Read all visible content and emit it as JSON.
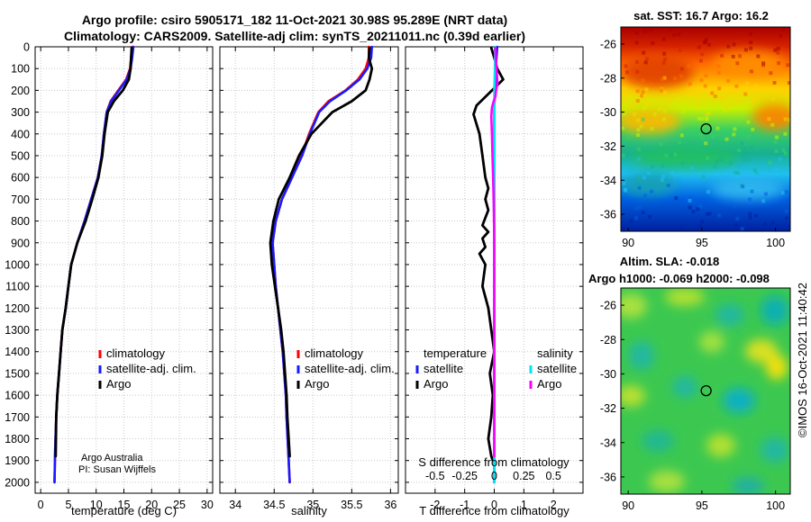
{
  "title_line1": "Argo profile: csiro 5905171_182 11-Oct-2021 30.98S 95.289E (NRT data)",
  "title_line2": "Climatology: CARS2009. Satellite-adj clim: synTS_20211011.nc (0.39d earlier)",
  "credit": {
    "line1": "Argo Australia",
    "line2": "PI: Susan Wijffels"
  },
  "stamp": "©IMOS 16-Oct-2021 11:40:42",
  "colors": {
    "climatology": "#ff0000",
    "satellite_adj": "#1a1aff",
    "argo": "#000000",
    "sat_cyan": "#00e5ee",
    "argo_magenta": "#ff00ff",
    "grid": "#c8c8c8"
  },
  "chart_data": [
    {
      "type": "line",
      "id": "temperature",
      "xlabel": "temperature (deg C)",
      "ylabel": "",
      "xlim": [
        -1,
        31
      ],
      "ylim": [
        2050,
        0
      ],
      "xticks": [
        0,
        5,
        10,
        15,
        20,
        25,
        30
      ],
      "xtick_labels": [
        "0",
        "5",
        "10",
        "15",
        "20",
        "25",
        "30"
      ],
      "yticks": [
        0,
        100,
        200,
        300,
        400,
        500,
        600,
        700,
        800,
        900,
        1000,
        1100,
        1200,
        1300,
        1400,
        1500,
        1600,
        1700,
        1800,
        1900,
        2000
      ],
      "ytick_labels": [
        "0",
        "100",
        "200",
        "300",
        "400",
        "500",
        "600",
        "700",
        "800",
        "900",
        "1000",
        "1100",
        "1200",
        "1300",
        "1400",
        "1500",
        "1600",
        "1700",
        "1800",
        "1900",
        "2000"
      ],
      "grid": true,
      "legend": [
        "climatology",
        "satellite-adj. clim.",
        "Argo"
      ],
      "legend_position": "bottom-right",
      "series": [
        {
          "name": "climatology",
          "color": "#ff0000",
          "x": [
            16.5,
            16.3,
            16.1,
            15.4,
            14.0,
            12.6,
            11.9,
            11.4,
            11.0,
            10.3,
            9.1,
            7.9,
            6.6,
            5.5,
            5.0,
            4.5,
            3.9,
            3.6,
            3.3,
            3.0,
            2.8,
            2.6,
            2.5
          ],
          "y": [
            0,
            50,
            100,
            150,
            200,
            250,
            300,
            400,
            500,
            600,
            700,
            800,
            900,
            1000,
            1100,
            1200,
            1300,
            1400,
            1500,
            1600,
            1700,
            1850,
            2000
          ]
        },
        {
          "name": "satellite-adj. clim.",
          "color": "#1a1aff",
          "x": [
            16.7,
            16.5,
            16.2,
            15.5,
            14.1,
            12.7,
            11.9,
            11.4,
            11.0,
            10.3,
            9.1,
            7.9,
            6.6,
            5.5,
            5.0,
            4.5,
            3.9,
            3.6,
            3.3,
            3.0,
            2.8,
            2.6,
            2.5
          ],
          "y": [
            0,
            50,
            100,
            150,
            200,
            250,
            300,
            400,
            500,
            600,
            700,
            800,
            900,
            1000,
            1100,
            1200,
            1300,
            1400,
            1500,
            1600,
            1700,
            1850,
            2000
          ]
        },
        {
          "name": "Argo",
          "color": "#000000",
          "x": [
            16.4,
            16.3,
            16.2,
            15.9,
            14.8,
            13.2,
            12.1,
            11.5,
            11.1,
            10.4,
            9.3,
            8.1,
            6.6,
            5.5,
            5.0,
            4.5,
            3.9,
            3.6,
            3.3,
            3.0,
            2.8,
            2.7
          ],
          "y": [
            5,
            50,
            100,
            150,
            200,
            250,
            300,
            400,
            500,
            600,
            700,
            800,
            900,
            1000,
            1100,
            1200,
            1300,
            1400,
            1500,
            1600,
            1700,
            1880
          ]
        }
      ]
    },
    {
      "type": "line",
      "id": "salinity",
      "xlabel": "salinity",
      "ylabel": "",
      "xlim": [
        33.8,
        36.1
      ],
      "ylim": [
        2050,
        0
      ],
      "xticks": [
        34,
        34.5,
        35,
        35.5,
        36
      ],
      "xtick_labels": [
        "34",
        "34.5",
        "35",
        "35.5",
        "36"
      ],
      "grid": true,
      "legend": [
        "climatology",
        "satellite-adj. clim.",
        "Argo"
      ],
      "legend_position": "bottom-right",
      "series": [
        {
          "name": "climatology",
          "color": "#ff0000",
          "x": [
            35.72,
            35.72,
            35.68,
            35.58,
            35.42,
            35.2,
            35.07,
            34.95,
            34.85,
            34.73,
            34.6,
            34.52,
            34.48,
            34.5,
            34.52,
            34.55,
            34.58,
            34.61,
            34.63,
            34.65,
            34.66,
            34.68,
            34.7
          ],
          "y": [
            0,
            50,
            100,
            150,
            200,
            250,
            300,
            400,
            500,
            600,
            700,
            800,
            900,
            1000,
            1100,
            1200,
            1300,
            1400,
            1500,
            1600,
            1700,
            1850,
            2000
          ]
        },
        {
          "name": "satellite-adj. clim.",
          "color": "#1a1aff",
          "x": [
            35.76,
            35.75,
            35.7,
            35.6,
            35.43,
            35.22,
            35.08,
            34.96,
            34.86,
            34.73,
            34.6,
            34.52,
            34.48,
            34.5,
            34.52,
            34.55,
            34.58,
            34.61,
            34.63,
            34.65,
            34.66,
            34.68,
            34.7
          ],
          "y": [
            0,
            50,
            100,
            150,
            200,
            250,
            300,
            400,
            500,
            600,
            700,
            800,
            900,
            1000,
            1100,
            1200,
            1300,
            1400,
            1500,
            1600,
            1700,
            1850,
            2000
          ]
        },
        {
          "name": "Argo",
          "color": "#000000",
          "x": [
            35.73,
            35.72,
            35.76,
            35.73,
            35.68,
            35.5,
            35.25,
            34.98,
            34.82,
            34.7,
            34.56,
            34.49,
            34.45,
            34.47,
            34.51,
            34.55,
            34.59,
            34.62,
            34.64,
            34.66,
            34.67,
            34.7
          ],
          "y": [
            5,
            50,
            100,
            150,
            200,
            250,
            300,
            400,
            500,
            600,
            700,
            800,
            900,
            1000,
            1100,
            1200,
            1300,
            1400,
            1500,
            1600,
            1700,
            1880
          ]
        }
      ]
    },
    {
      "type": "line",
      "id": "difference",
      "xlabel": "T difference from climatology",
      "xlabel_top": "S difference from climatology",
      "xlim": [
        -3,
        3
      ],
      "ylim": [
        2050,
        0
      ],
      "xticks": [
        -2,
        -1,
        0,
        1,
        2
      ],
      "xtick_labels": [
        "-2",
        "-1",
        "0",
        "1",
        "2"
      ],
      "xticks_top": [
        -0.5,
        -0.25,
        0,
        0.25,
        0.5
      ],
      "xtick_labels_top": [
        "-0.5",
        "-0.25",
        "0",
        "0.25",
        "0.5"
      ],
      "grid": true,
      "legend_temperature": {
        "title": "temperature",
        "items": [
          "satellite",
          "Argo"
        ]
      },
      "legend_salinity": {
        "title": "salinity",
        "items": [
          "satellite",
          "Argo"
        ]
      },
      "series": [
        {
          "name": "T satellite",
          "color": "#1a1aff",
          "x": [
            0.1,
            0.05,
            0.02,
            0.0,
            0.0,
            0.0,
            0.0,
            0.0,
            0.0,
            0.0
          ],
          "y": [
            0,
            100,
            200,
            300,
            500,
            800,
            1100,
            1400,
            1700,
            2000
          ]
        },
        {
          "name": "T Argo",
          "color": "#000000",
          "x": [
            -0.1,
            0.0,
            0.1,
            0.3,
            -0.6,
            -0.7,
            -0.5,
            -0.4,
            -0.3,
            -0.2,
            -0.3,
            -0.2,
            -0.4,
            -0.2,
            -0.4,
            -0.3,
            -0.5,
            -0.3,
            -0.4,
            -0.2,
            -0.1,
            0.0,
            -0.15,
            -0.05,
            -0.1,
            -0.2,
            -0.1,
            -0.05
          ],
          "y": [
            5,
            50,
            100,
            150,
            270,
            310,
            400,
            500,
            600,
            650,
            700,
            750,
            820,
            850,
            880,
            920,
            950,
            1000,
            1100,
            1200,
            1300,
            1400,
            1500,
            1600,
            1700,
            1800,
            1880,
            1900
          ]
        },
        {
          "name": "S satellite",
          "color": "#00e5ee",
          "x": [
            0.03,
            0.02,
            0.0,
            0.01,
            0.01,
            0.0,
            0.0,
            0.0,
            0.0,
            0.0
          ],
          "y": [
            0,
            100,
            200,
            300,
            500,
            800,
            1100,
            1400,
            1700,
            2000
          ]
        },
        {
          "name": "S Argo",
          "color": "#ff00ff",
          "x": [
            0.04,
            0.05,
            0.08,
            0.1,
            0.11,
            0.06,
            0.04,
            -0.02,
            -0.08,
            -0.1,
            -0.08,
            -0.06,
            -0.04,
            -0.02,
            -0.01,
            0.0,
            0.0,
            0.0,
            0.0,
            0.0,
            0.0,
            0.0
          ],
          "y": [
            5,
            50,
            100,
            150,
            170,
            200,
            230,
            250,
            280,
            320,
            400,
            500,
            600,
            700,
            800,
            900,
            1000,
            1200,
            1400,
            1600,
            1800,
            1880
          ]
        }
      ]
    },
    {
      "type": "heatmap",
      "id": "sst_map",
      "title": "sat. SST: 16.7 Argo: 16.2",
      "xlim": [
        89.5,
        101
      ],
      "ylim": [
        -37,
        -25
      ],
      "xticks": [
        90,
        95,
        100
      ],
      "xtick_labels": [
        "90",
        "95",
        "100"
      ],
      "yticks": [
        -26,
        -28,
        -30,
        -32,
        -34,
        -36
      ],
      "ytick_labels": [
        "-26",
        "-28",
        "-30",
        "-32",
        "-34",
        "-36"
      ],
      "marker": {
        "lon": 95.289,
        "lat": -30.98
      }
    },
    {
      "type": "heatmap",
      "id": "sla_map",
      "title_line1": "Altim. SLA: -0.018",
      "title_line2": "Argo h1000: -0.069 h2000: -0.098",
      "xlim": [
        89.5,
        101
      ],
      "ylim": [
        -37,
        -25
      ],
      "xticks": [
        90,
        95,
        100
      ],
      "xtick_labels": [
        "90",
        "95",
        "100"
      ],
      "yticks": [
        -26,
        -28,
        -30,
        -32,
        -34,
        -36
      ],
      "ytick_labels": [
        "-26",
        "-28",
        "-30",
        "-32",
        "-34",
        "-36"
      ],
      "marker": {
        "lon": 95.289,
        "lat": -30.98
      }
    }
  ]
}
